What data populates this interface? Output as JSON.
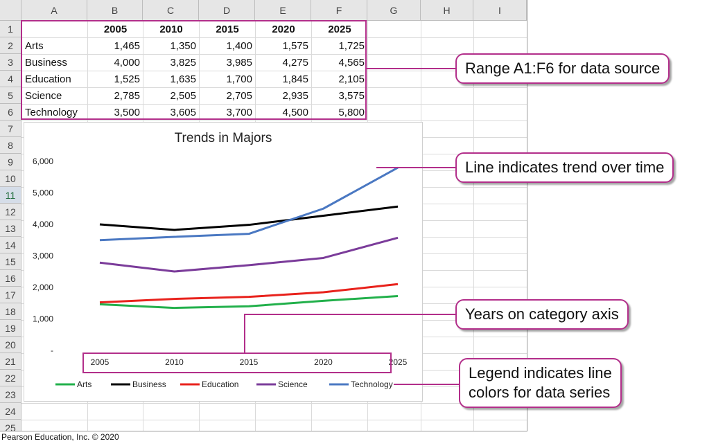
{
  "spreadsheet": {
    "columns": [
      "A",
      "B",
      "C",
      "D",
      "E",
      "F",
      "G",
      "H",
      "I"
    ],
    "rows": [
      "1",
      "2",
      "3",
      "4",
      "5",
      "6",
      "7",
      "8",
      "9",
      "10",
      "11",
      "12",
      "13",
      "14",
      "15",
      "16",
      "17",
      "18",
      "19",
      "20",
      "21",
      "22",
      "23",
      "24",
      "25"
    ],
    "active_row": "11",
    "header_row": [
      "",
      "2005",
      "2010",
      "2015",
      "2020",
      "2025"
    ],
    "data_rows": [
      {
        "label": "Arts",
        "values": [
          "1,465",
          "1,350",
          "1,400",
          "1,575",
          "1,725"
        ]
      },
      {
        "label": "Business",
        "values": [
          "4,000",
          "3,825",
          "3,985",
          "4,275",
          "4,565"
        ]
      },
      {
        "label": "Education",
        "values": [
          "1,525",
          "1,635",
          "1,700",
          "1,845",
          "2,105"
        ]
      },
      {
        "label": "Science",
        "values": [
          "2,785",
          "2,505",
          "2,705",
          "2,935",
          "3,575"
        ]
      },
      {
        "label": "Technology",
        "values": [
          "3,500",
          "3,605",
          "3,700",
          "4,500",
          "5,800"
        ]
      }
    ]
  },
  "chart_data": {
    "type": "line",
    "title": "Trends in Majors",
    "categories": [
      "2005",
      "2010",
      "2015",
      "2020",
      "2025"
    ],
    "y_ticks": [
      "6,000",
      "5,000",
      "4,000",
      "3,000",
      "2,000",
      "1,000",
      "-"
    ],
    "ylim": [
      0,
      6000
    ],
    "legend_position": "bottom",
    "series": [
      {
        "name": "Arts",
        "color": "#22b04b",
        "values": [
          1465,
          1350,
          1400,
          1575,
          1725
        ]
      },
      {
        "name": "Business",
        "color": "#000000",
        "values": [
          4000,
          3825,
          3985,
          4275,
          4565
        ]
      },
      {
        "name": "Education",
        "color": "#e8221c",
        "values": [
          1525,
          1635,
          1700,
          1845,
          2105
        ]
      },
      {
        "name": "Science",
        "color": "#7b3c9a",
        "values": [
          2785,
          2505,
          2705,
          2935,
          3575
        ]
      },
      {
        "name": "Technology",
        "color": "#4a78c2",
        "values": [
          3500,
          3605,
          3700,
          4500,
          5800
        ]
      }
    ]
  },
  "callouts": {
    "range": "Range A1:F6 for data source",
    "trend": "Line indicates trend over time",
    "years": "Years on category axis",
    "legend_line1": "Legend indicates line",
    "legend_line2": "colors for data series"
  },
  "copyright": "Pearson Education, Inc. © 2020",
  "accent_color": "#b22e8a"
}
